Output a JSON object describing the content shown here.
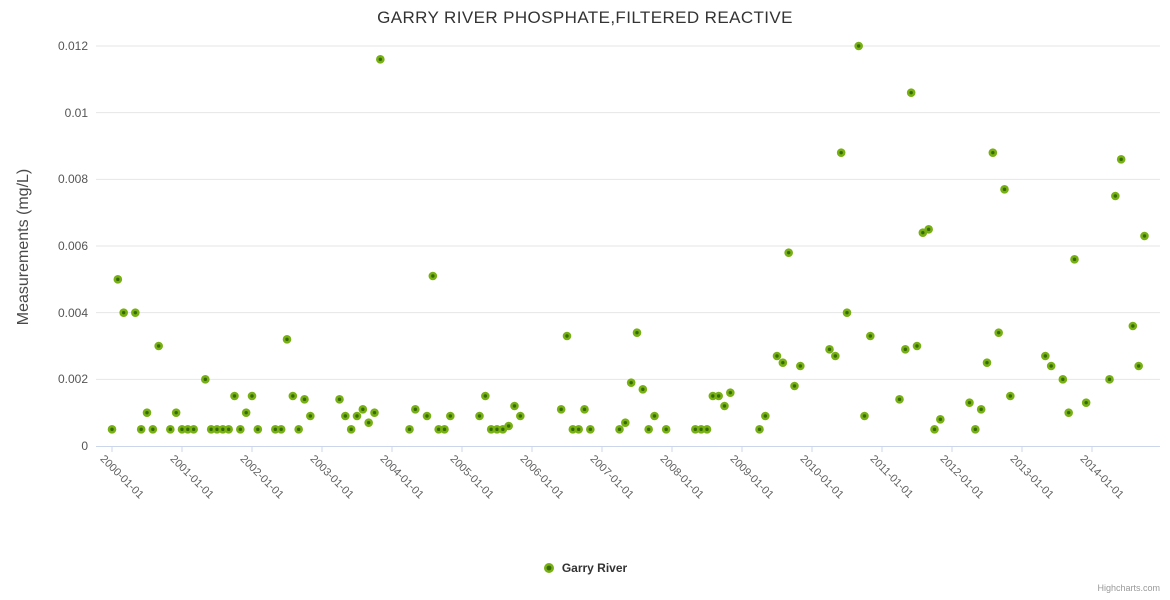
{
  "chart": {
    "title": "GARRY RIVER PHOSPHATE,FILTERED REACTIVE",
    "y_axis_title": "Measurements (mg/L)"
  },
  "legend": {
    "series_name": "Garry River"
  },
  "credits": {
    "text": "Highcharts.com"
  },
  "colors": {
    "marker_outer": "#77b013",
    "marker_inner": "#356b00",
    "grid_line": "#e6e6e6",
    "axis_line": "#ccd6eb",
    "tick_mark": "#ccd6eb"
  },
  "chart_data": {
    "type": "scatter",
    "title": "GARRY RIVER PHOSPHATE,FILTERED REACTIVE",
    "xlabel": "",
    "ylabel": "Measurements (mg/L)",
    "ylim": [
      0,
      0.012
    ],
    "grid": "horizontal",
    "legend_position": "bottom-center",
    "y_ticks": {
      "values": [
        0,
        0.002,
        0.004,
        0.006,
        0.008,
        0.01,
        0.012
      ],
      "labels": [
        "0",
        "0.002",
        "0.004",
        "0.006",
        "0.008",
        "0.01",
        "0.012"
      ]
    },
    "x_ticks": [
      "2000-01-01",
      "2001-01-01",
      "2002-01-01",
      "2003-01-01",
      "2004-01-01",
      "2005-01-01",
      "2006-01-01",
      "2007-01-01",
      "2008-01-01",
      "2009-01-01",
      "2010-01-01",
      "2011-01-01",
      "2012-01-01",
      "2013-01-01",
      "2014-01-01"
    ],
    "series": [
      {
        "name": "Garry River",
        "points": [
          [
            "2000-01",
            0.0005
          ],
          [
            "2000-02",
            0.005
          ],
          [
            "2000-03",
            0.004
          ],
          [
            "2000-05",
            0.004
          ],
          [
            "2000-06",
            0.0005
          ],
          [
            "2000-07",
            0.001
          ],
          [
            "2000-08",
            0.0005
          ],
          [
            "2000-09",
            0.003
          ],
          [
            "2000-11",
            0.0005
          ],
          [
            "2000-12",
            0.001
          ],
          [
            "2001-01",
            0.0005
          ],
          [
            "2001-02",
            0.0005
          ],
          [
            "2001-03",
            0.0005
          ],
          [
            "2001-05",
            0.002
          ],
          [
            "2001-06",
            0.0005
          ],
          [
            "2001-07",
            0.0005
          ],
          [
            "2001-08",
            0.0005
          ],
          [
            "2001-09",
            0.0005
          ],
          [
            "2001-10",
            0.0015
          ],
          [
            "2001-11",
            0.0005
          ],
          [
            "2001-12",
            0.001
          ],
          [
            "2002-01",
            0.0015
          ],
          [
            "2002-02",
            0.0005
          ],
          [
            "2002-05",
            0.0005
          ],
          [
            "2002-06",
            0.0005
          ],
          [
            "2002-07",
            0.0032
          ],
          [
            "2002-08",
            0.0015
          ],
          [
            "2002-09",
            0.0005
          ],
          [
            "2002-10",
            0.0014
          ],
          [
            "2002-11",
            0.0009
          ],
          [
            "2003-04",
            0.0014
          ],
          [
            "2003-05",
            0.0009
          ],
          [
            "2003-06",
            0.0005
          ],
          [
            "2003-07",
            0.0009
          ],
          [
            "2003-08",
            0.0011
          ],
          [
            "2003-09",
            0.0007
          ],
          [
            "2003-10",
            0.001
          ],
          [
            "2003-11",
            0.0116
          ],
          [
            "2004-04",
            0.0005
          ],
          [
            "2004-05",
            0.0011
          ],
          [
            "2004-07",
            0.0009
          ],
          [
            "2004-08",
            0.0051
          ],
          [
            "2004-09",
            0.0005
          ],
          [
            "2004-10",
            0.0005
          ],
          [
            "2004-11",
            0.0009
          ],
          [
            "2005-04",
            0.0009
          ],
          [
            "2005-05",
            0.0015
          ],
          [
            "2005-06",
            0.0005
          ],
          [
            "2005-07",
            0.0005
          ],
          [
            "2005-08",
            0.0005
          ],
          [
            "2005-09",
            0.0006
          ],
          [
            "2005-10",
            0.0012
          ],
          [
            "2005-11",
            0.0009
          ],
          [
            "2006-06",
            0.0011
          ],
          [
            "2006-07",
            0.0033
          ],
          [
            "2006-08",
            0.0005
          ],
          [
            "2006-09",
            0.0005
          ],
          [
            "2006-10",
            0.0011
          ],
          [
            "2006-11",
            0.0005
          ],
          [
            "2007-04",
            0.0005
          ],
          [
            "2007-05",
            0.0007
          ],
          [
            "2007-06",
            0.0019
          ],
          [
            "2007-07",
            0.0034
          ],
          [
            "2007-08",
            0.0017
          ],
          [
            "2007-09",
            0.0005
          ],
          [
            "2007-10",
            0.0009
          ],
          [
            "2007-12",
            0.0005
          ],
          [
            "2008-05",
            0.0005
          ],
          [
            "2008-06",
            0.0005
          ],
          [
            "2008-07",
            0.0005
          ],
          [
            "2008-08",
            0.0015
          ],
          [
            "2008-09",
            0.0015
          ],
          [
            "2008-10",
            0.0012
          ],
          [
            "2008-11",
            0.0016
          ],
          [
            "2009-04",
            0.0005
          ],
          [
            "2009-05",
            0.0009
          ],
          [
            "2009-07",
            0.0027
          ],
          [
            "2009-08",
            0.0025
          ],
          [
            "2009-09",
            0.0058
          ],
          [
            "2009-10",
            0.0018
          ],
          [
            "2009-11",
            0.0024
          ],
          [
            "2010-04",
            0.0029
          ],
          [
            "2010-05",
            0.0027
          ],
          [
            "2010-06",
            0.0088
          ],
          [
            "2010-07",
            0.004
          ],
          [
            "2010-09",
            0.012
          ],
          [
            "2010-10",
            0.0009
          ],
          [
            "2010-11",
            0.0033
          ],
          [
            "2011-04",
            0.0014
          ],
          [
            "2011-05",
            0.0029
          ],
          [
            "2011-06",
            0.0106
          ],
          [
            "2011-07",
            0.003
          ],
          [
            "2011-08",
            0.0064
          ],
          [
            "2011-09",
            0.0065
          ],
          [
            "2011-10",
            0.0005
          ],
          [
            "2011-11",
            0.0008
          ],
          [
            "2012-04",
            0.0013
          ],
          [
            "2012-05",
            0.0005
          ],
          [
            "2012-06",
            0.0011
          ],
          [
            "2012-07",
            0.0025
          ],
          [
            "2012-08",
            0.0088
          ],
          [
            "2012-09",
            0.0034
          ],
          [
            "2012-10",
            0.0077
          ],
          [
            "2012-11",
            0.0015
          ],
          [
            "2013-05",
            0.0027
          ],
          [
            "2013-06",
            0.0024
          ],
          [
            "2013-08",
            0.002
          ],
          [
            "2013-09",
            0.001
          ],
          [
            "2013-10",
            0.0056
          ],
          [
            "2013-12",
            0.0013
          ],
          [
            "2014-04",
            0.002
          ],
          [
            "2014-05",
            0.0075
          ],
          [
            "2014-06",
            0.0086
          ],
          [
            "2014-08",
            0.0036
          ],
          [
            "2014-09",
            0.0024
          ],
          [
            "2014-10",
            0.0063
          ]
        ]
      }
    ]
  }
}
